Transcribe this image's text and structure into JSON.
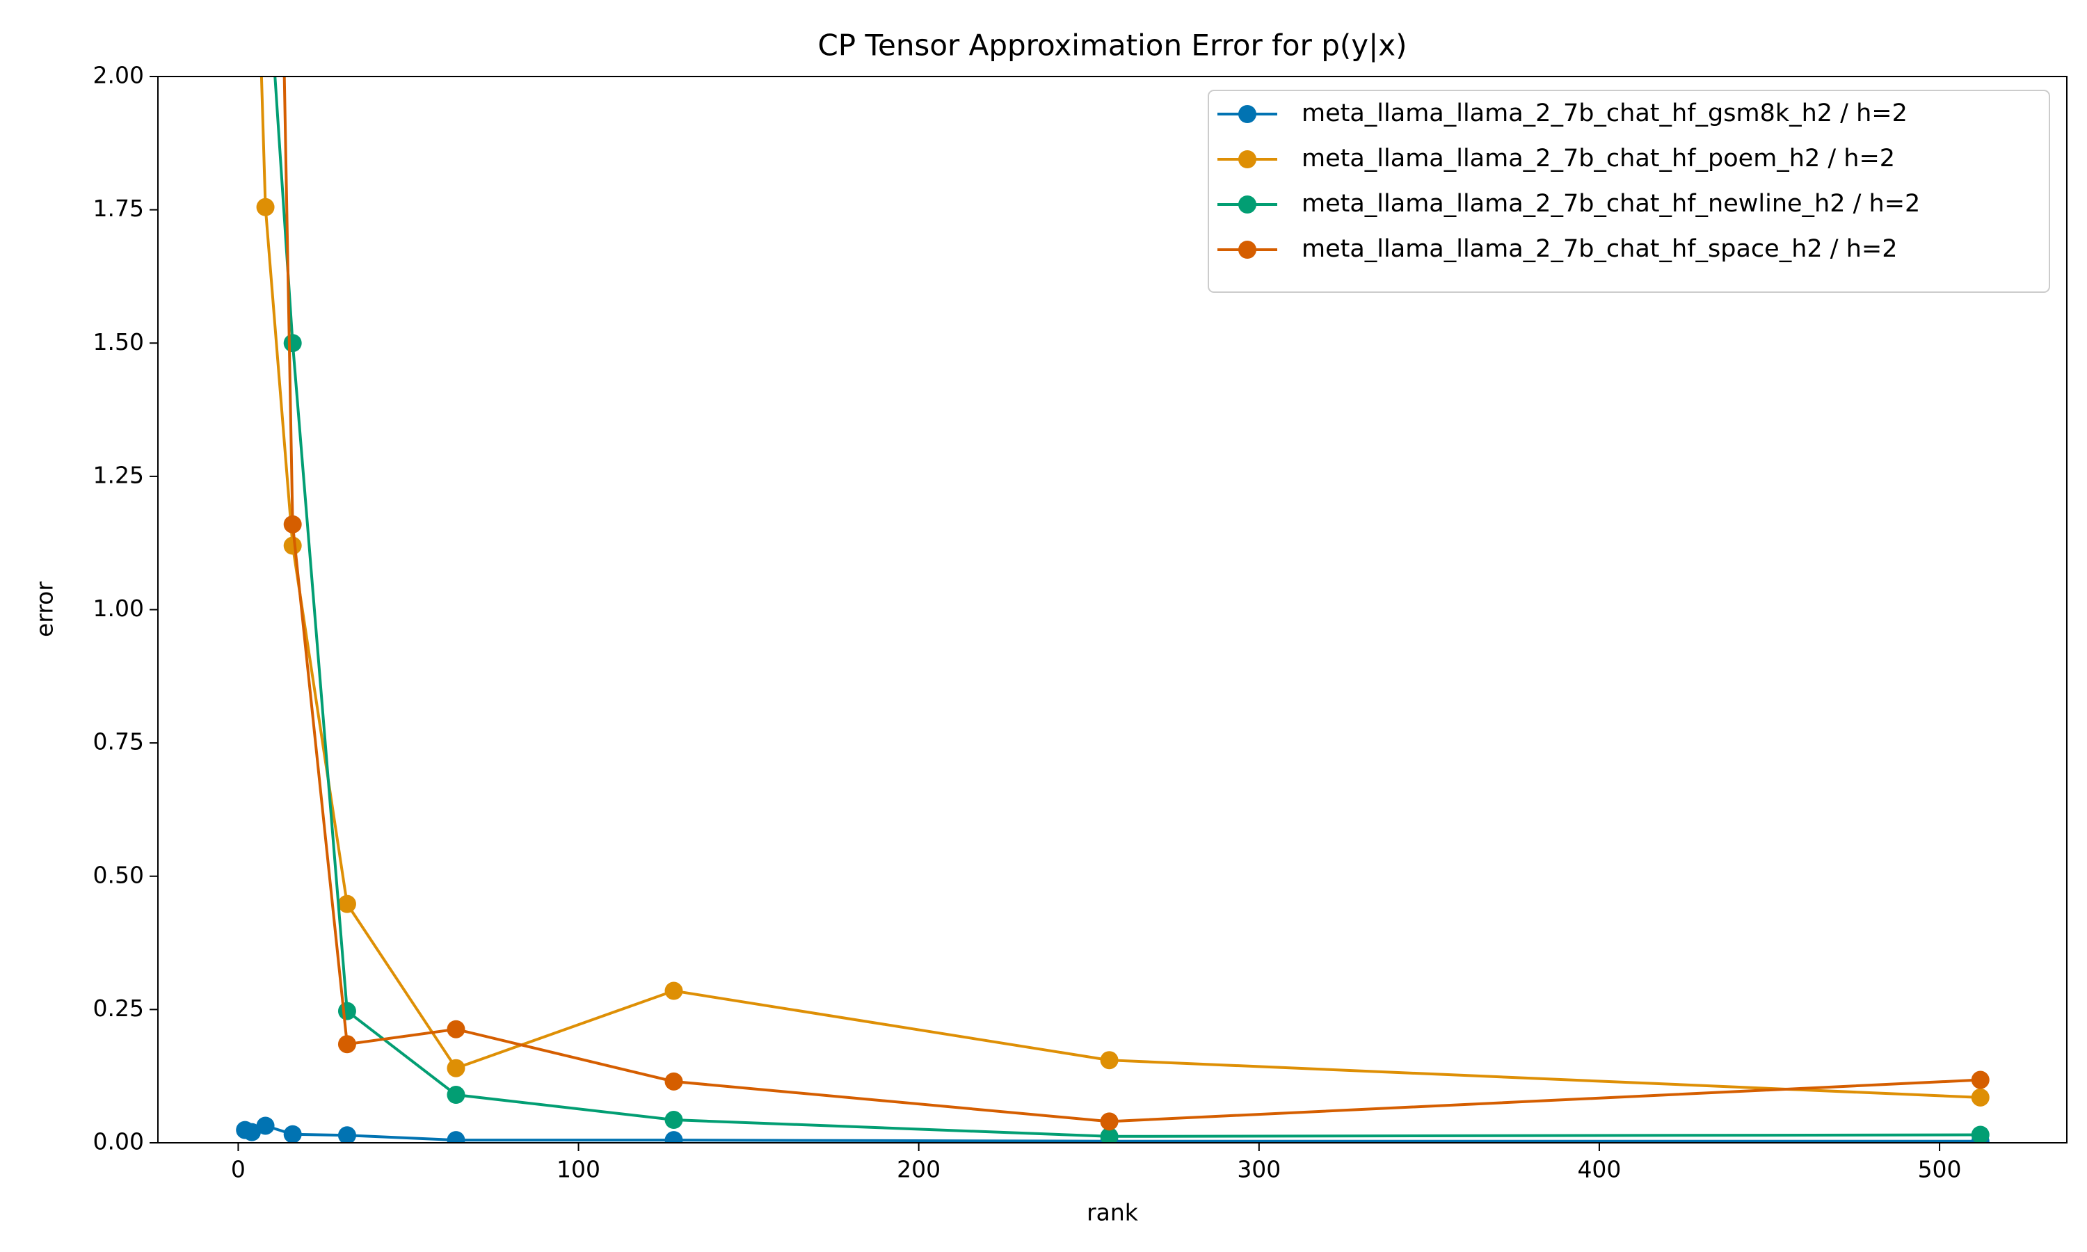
{
  "chart_data": {
    "type": "line",
    "title": "CP Tensor Approximation Error for p(y|x)",
    "x_label": "rank",
    "y_label": "error",
    "x": [
      2,
      4,
      8,
      16,
      32,
      64,
      128,
      256,
      512
    ],
    "series": [
      {
        "name": "meta_llama_llama_2_7b_chat_hf_gsm8k_h2 / h=2",
        "color": "#0173b2",
        "values": [
          0.024,
          0.02,
          0.032,
          0.016,
          0.014,
          0.005,
          0.005,
          0.003,
          0.003
        ]
      },
      {
        "name": "meta_llama_llama_2_7b_chat_hf_poem_h2 / h=2",
        "color": "#de8f05",
        "values": [
          null,
          2.6,
          1.755,
          1.12,
          0.448,
          0.14,
          0.285,
          0.155,
          0.085
        ]
      },
      {
        "name": "meta_llama_llama_2_7b_chat_hf_newline_h2 / h=2",
        "color": "#029e73",
        "values": [
          null,
          null,
          2.27,
          1.5,
          0.247,
          0.09,
          0.043,
          0.012,
          0.015
        ]
      },
      {
        "name": "meta_llama_llama_2_7b_chat_hf_space_h2 / h=2",
        "color": "#d55e00",
        "values": [
          null,
          null,
          3.9,
          1.16,
          0.185,
          0.213,
          0.115,
          0.04,
          0.118
        ]
      }
    ],
    "xlim": [
      -23.6,
      537.4
    ],
    "ylim": [
      0,
      2
    ],
    "xticks": [
      0,
      100,
      200,
      300,
      400,
      500
    ],
    "yticks": [
      {
        "value": 0,
        "label": "0.00"
      },
      {
        "value": 0.25,
        "label": "0.25"
      },
      {
        "value": 0.5,
        "label": "0.50"
      },
      {
        "value": 0.75,
        "label": "0.75"
      },
      {
        "value": 1,
        "label": "1.00"
      },
      {
        "value": 1.25,
        "label": "1.25"
      },
      {
        "value": 1.5,
        "label": "1.50"
      },
      {
        "value": 1.75,
        "label": "1.75"
      },
      {
        "value": 2,
        "label": "2.00"
      }
    ],
    "grid": false,
    "legend": "upper right"
  }
}
